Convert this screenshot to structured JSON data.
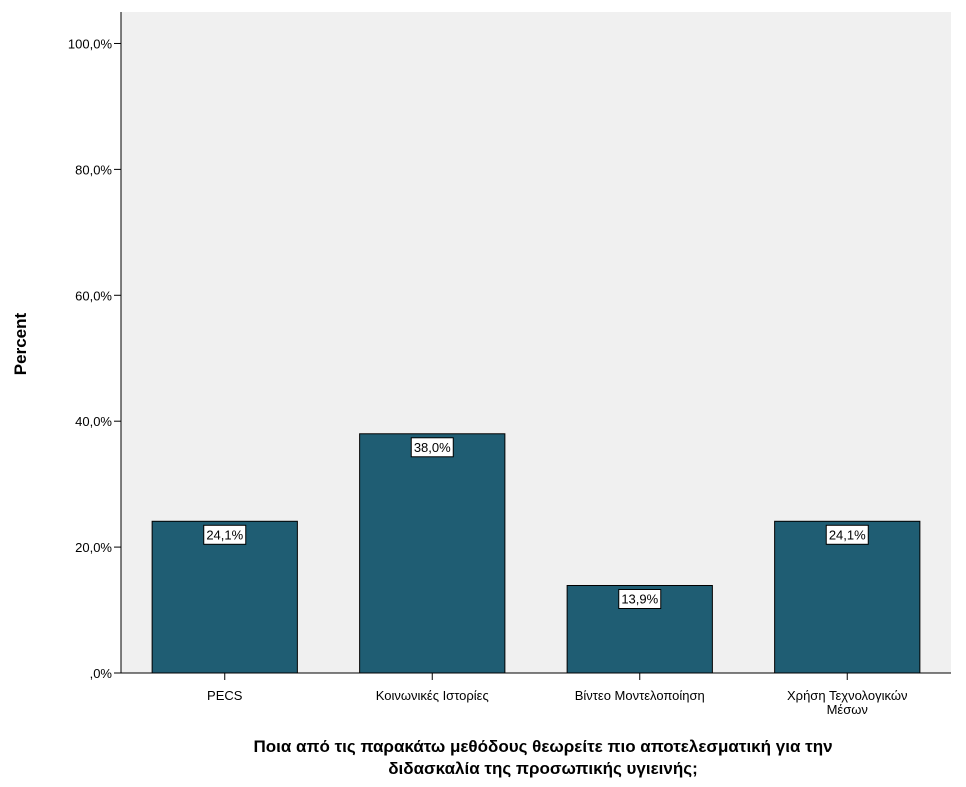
{
  "chart_data": {
    "type": "bar",
    "categories": [
      [
        "PECS"
      ],
      [
        "Κοινωνικές Ιστορίες"
      ],
      [
        "Βίντεο Μοντελοποίηση"
      ],
      [
        "Χρήση Τεχνολογικών",
        "Μέσων"
      ]
    ],
    "values": [
      24.1,
      38.0,
      13.9,
      24.1
    ],
    "data_labels": [
      "24,1%",
      "38,0%",
      "13,9%",
      "24,1%"
    ],
    "ylabel": "Percent",
    "xlabel": [
      "Ποια από τις παρακάτω μεθόδους θεωρείτε πιο αποτελεσματική για την",
      "διδασκαλία της προσωπικής υγιεινής;"
    ],
    "yticks": [
      0,
      20,
      40,
      60,
      80,
      100
    ],
    "ytick_labels": [
      ",0%",
      "20,0%",
      "40,0%",
      "60,0%",
      "80,0%",
      "100,0%"
    ],
    "ylim": [
      0,
      105
    ],
    "grid": false,
    "colors": {
      "bar_fill": "#1f5d73",
      "bar_stroke": "#000000",
      "plot_background": "#f0f0f0",
      "label_box": "#ffffff"
    }
  }
}
